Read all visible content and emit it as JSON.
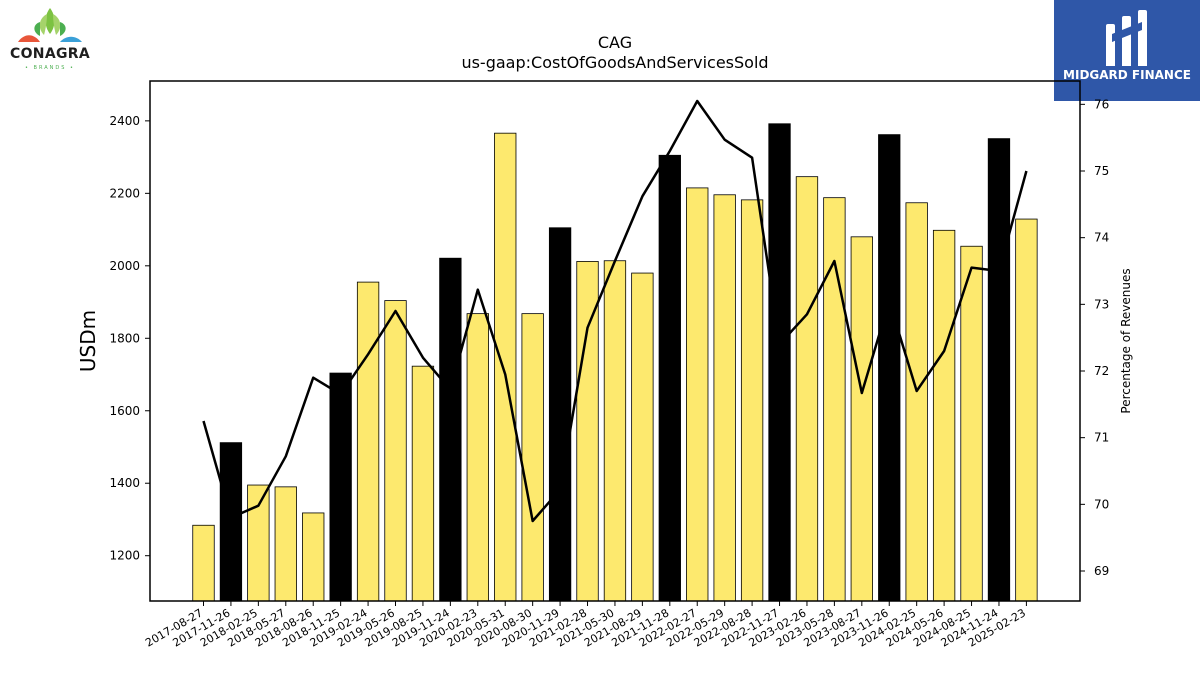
{
  "logos": {
    "left_brand": "CONAGRA",
    "left_sub": "• BRANDS •",
    "right_brand": "MIDGARD FINANCE"
  },
  "colors": {
    "bar_yellow": "#fde96e",
    "bar_black": "#000000",
    "line": "#000000",
    "right_logo_bg": "#2f57a8"
  },
  "chart_data": {
    "type": "bar",
    "title": "CAG",
    "subtitle": "us-gaap:CostOfGoodsAndServicesSold",
    "ylabel": "USDm",
    "y2label": "Percentage of Revenues",
    "ylim": [
      1075,
      2510
    ],
    "y2lim": [
      68.55,
      76.35
    ],
    "yticks": [
      1200,
      1400,
      1600,
      1800,
      2000,
      2200,
      2400
    ],
    "y2ticks": [
      69,
      70,
      71,
      72,
      73,
      74,
      75,
      76
    ],
    "categories": [
      "2017-08-27",
      "2017-11-26",
      "2018-02-25",
      "2018-05-27",
      "2018-08-26",
      "2018-11-25",
      "2019-02-24",
      "2019-05-26",
      "2019-08-25",
      "2019-11-24",
      "2020-02-23",
      "2020-05-31",
      "2020-08-30",
      "2020-11-29",
      "2021-02-28",
      "2021-05-30",
      "2021-08-29",
      "2021-11-28",
      "2022-02-27",
      "2022-05-29",
      "2022-08-28",
      "2022-11-27",
      "2023-02-26",
      "2023-05-28",
      "2023-08-27",
      "2023-11-26",
      "2024-02-25",
      "2024-05-26",
      "2024-08-25",
      "2024-11-24",
      "2025-02-23"
    ],
    "series": [
      {
        "kind": "bar",
        "values": [
          1284,
          1512,
          1395,
          1390,
          1318,
          1704,
          1955,
          1904,
          1723,
          2021,
          1868,
          2366,
          1868,
          2105,
          2012,
          2014,
          1980,
          2305,
          2215,
          2196,
          2182,
          2392,
          2246,
          2188,
          2080,
          2362,
          2174,
          2098,
          2054,
          2351,
          2129
        ],
        "highlighted": [
          false,
          true,
          false,
          false,
          false,
          true,
          false,
          false,
          false,
          true,
          false,
          false,
          false,
          true,
          false,
          false,
          false,
          true,
          false,
          false,
          false,
          true,
          false,
          false,
          false,
          true,
          false,
          false,
          false,
          true,
          false
        ]
      },
      {
        "kind": "line",
        "axis": "right",
        "values": [
          71.25,
          69.8,
          69.98,
          70.72,
          71.9,
          71.65,
          72.25,
          72.9,
          72.2,
          71.72,
          73.22,
          71.95,
          69.75,
          70.22,
          72.65,
          73.65,
          74.62,
          75.3,
          76.05,
          75.47,
          75.2,
          72.4,
          72.85,
          73.65,
          71.67,
          73.05,
          71.7,
          72.3,
          73.55,
          73.5,
          75.0
        ]
      }
    ],
    "grid": false,
    "legend": "none"
  }
}
